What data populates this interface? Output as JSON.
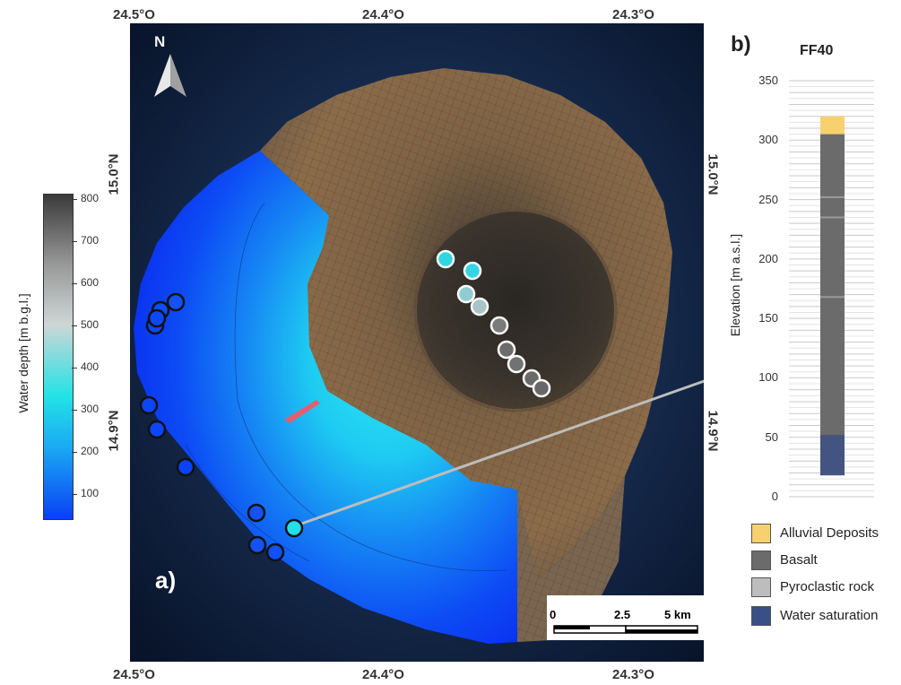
{
  "panel_a": {
    "label": "a)",
    "north_label": "N",
    "top_lon_labels": [
      "24.5°O",
      "24.4°O",
      "24.3°O"
    ],
    "bottom_lon_labels": [
      "24.5°O",
      "24.4°O",
      "24.3°O"
    ],
    "left_lat_labels": [
      "15.0°N",
      "14.9°N"
    ],
    "right_lat_labels": [
      "15.0°N",
      "14.9°N"
    ],
    "scale_bar": {
      "labels": [
        "0",
        "2.5",
        "5 km"
      ]
    },
    "colorbar": {
      "label": "Water depth [m b.g.l.]",
      "ticks": [
        "800",
        "700",
        "600",
        "500",
        "400",
        "300",
        "200",
        "100"
      ],
      "colors": [
        "#3a3a3a",
        "#9a9a9a",
        "#cfd6d6",
        "#22e3e6",
        "#1aa9f3",
        "#0a40f5"
      ]
    },
    "points_land": [
      {
        "depth": 280,
        "color": "#2fd6e0"
      },
      {
        "depth": 290,
        "color": "#35d5e2"
      },
      {
        "depth": 420,
        "color": "#8fcdd2"
      },
      {
        "depth": 480,
        "color": "#a9c4c6"
      },
      {
        "depth": 620,
        "color": "#7b7b7b"
      },
      {
        "depth": 650,
        "color": "#6c6c6c"
      },
      {
        "depth": 640,
        "color": "#727272"
      },
      {
        "depth": 660,
        "color": "#6a6a6a"
      },
      {
        "depth": 670,
        "color": "#686868"
      }
    ],
    "points_sea": [
      {
        "depth": 150,
        "color": "#1552f4"
      },
      {
        "depth": 140,
        "color": "#0f4ef5"
      },
      {
        "depth": 130,
        "color": "#0c48f5"
      },
      {
        "depth": 130,
        "color": "#0c48f5"
      },
      {
        "depth": 120,
        "color": "#0c46f5"
      },
      {
        "depth": 120,
        "color": "#0c46f5"
      },
      {
        "depth": 110,
        "color": "#0a42f5"
      },
      {
        "depth": 150,
        "color": "#1552f4"
      },
      {
        "depth": 150,
        "color": "#1552f4"
      },
      {
        "depth": 140,
        "color": "#124ff5"
      },
      {
        "depth": 300,
        "color": "#22dfe8",
        "highlight": true
      }
    ]
  },
  "panel_b": {
    "label": "b)",
    "title": "FF40",
    "y_label": "Elevation [m a.s.l.]",
    "y_ticks": [
      "350",
      "300",
      "250",
      "200",
      "150",
      "100",
      "50",
      "0"
    ],
    "chart_data": {
      "type": "stratigraphic_column",
      "well": "FF40",
      "ylim": [
        0,
        350
      ],
      "top_elevation": 320,
      "bottom_elevation": 18,
      "layers": [
        {
          "lithology": "Alluvial Deposits",
          "from": 305,
          "to": 320,
          "color": "#f7d070"
        },
        {
          "lithology": "Basalt",
          "from": 18,
          "to": 305,
          "color": "#6b6b6b"
        }
      ],
      "water_saturation": {
        "from": 18,
        "to": 52,
        "color": "#3a4f86"
      }
    },
    "legend": [
      {
        "label": "Alluvial Deposits",
        "color": "#f7d070"
      },
      {
        "label": "Basalt",
        "color": "#6b6b6b"
      },
      {
        "label": "Pyroclastic rock",
        "color": "#bdbdbd"
      },
      {
        "label": "Water saturation",
        "color": "#3a4f86"
      }
    ]
  }
}
